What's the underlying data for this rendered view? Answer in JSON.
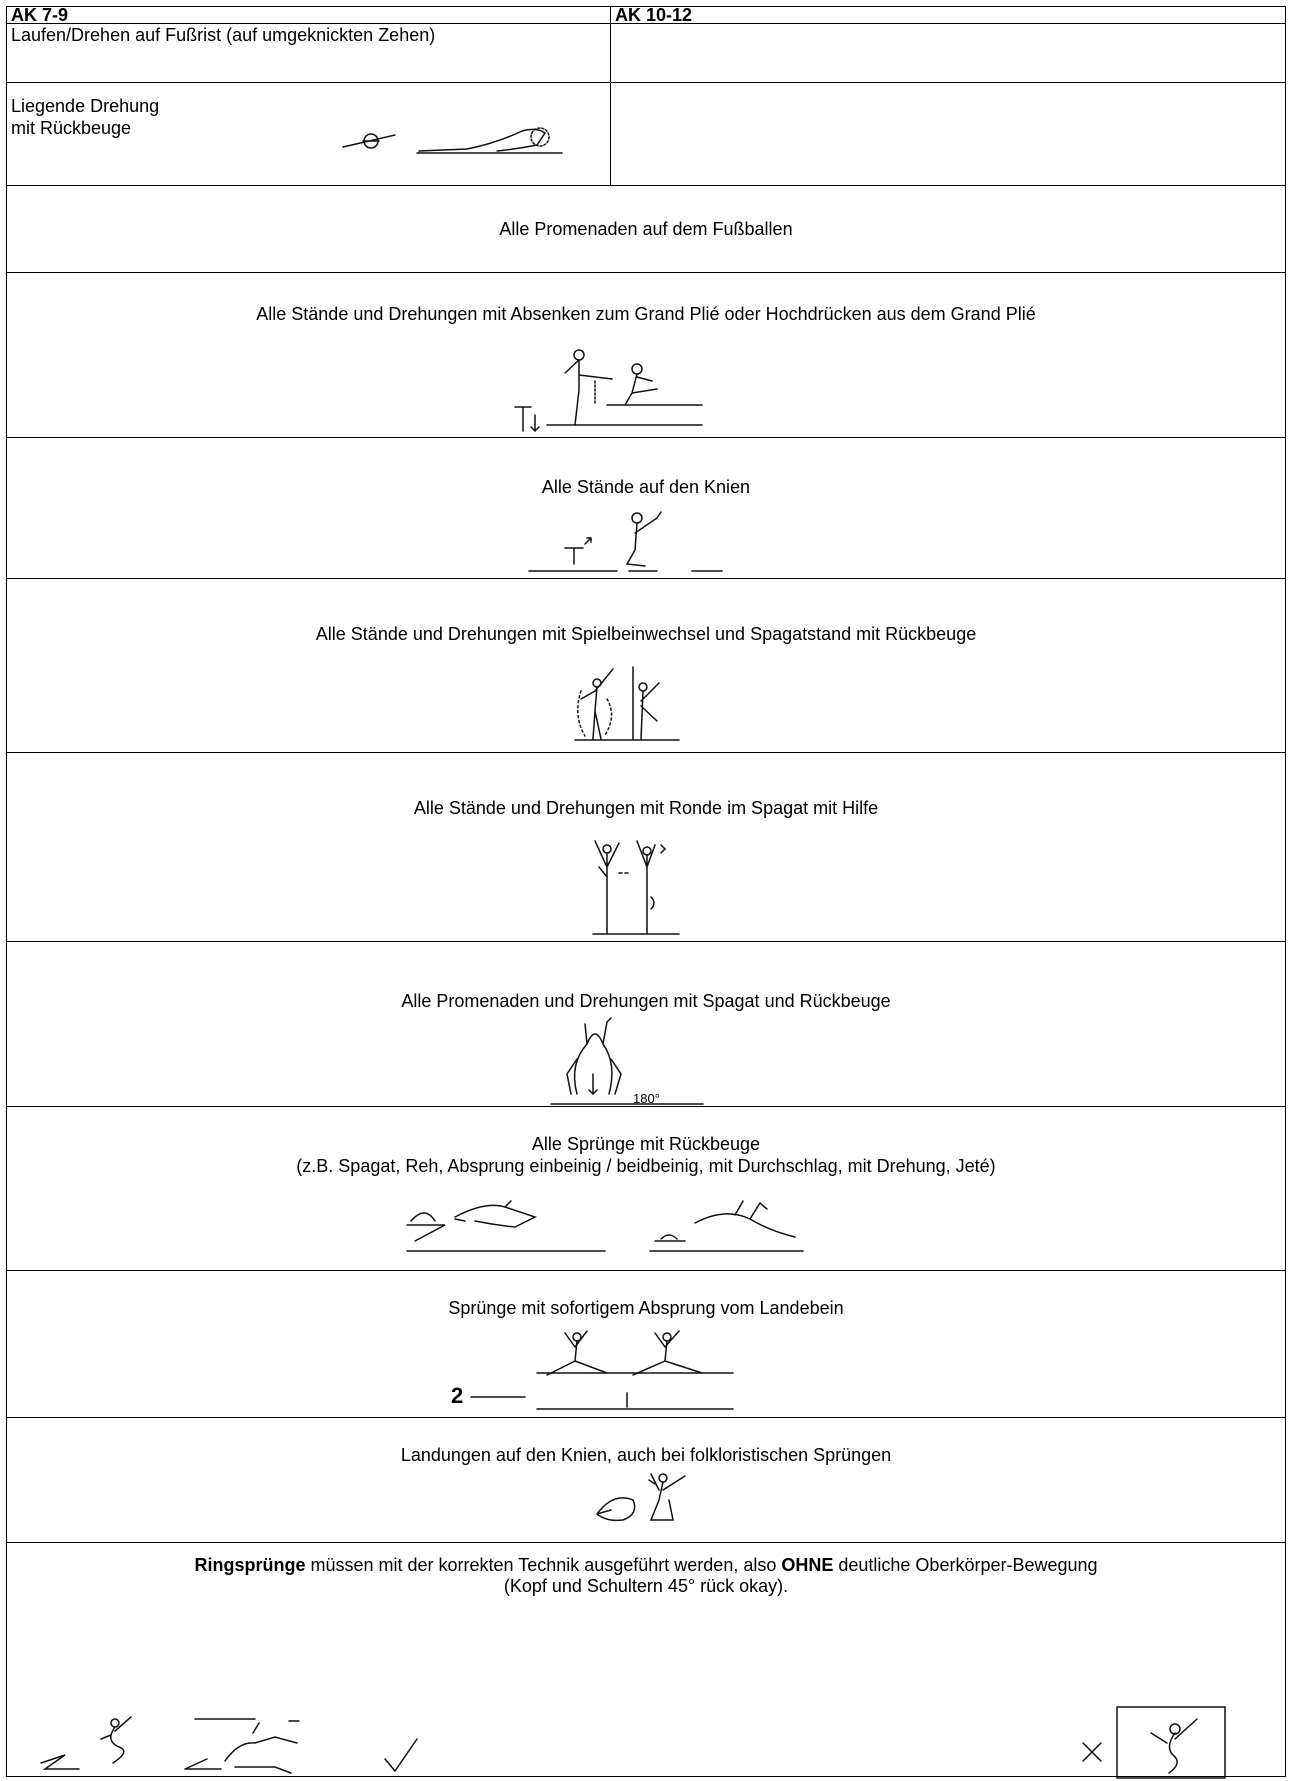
{
  "header": {
    "columns": [
      "AK 7-9",
      "AK 10-12"
    ]
  },
  "rows": [
    {
      "left": "Laufen/Drehen auf Fußrist (auf umgeknickten Zehen)"
    },
    {
      "left_lines": [
        "Liegende Drehung",
        "mit Rückbeuge"
      ]
    },
    {
      "text": "Alle Promenaden auf dem Fußballen"
    },
    {
      "text": "Alle Stände und Drehungen mit Absenken zum Grand Plié oder Hochdrücken aus dem Grand Plié"
    },
    {
      "text": "Alle Stände auf den Knien"
    },
    {
      "text": "Alle Stände und Drehungen mit Spielbeinwechsel und Spagatstand mit Rückbeuge"
    },
    {
      "text": "Alle Stände und Drehungen mit Ronde im Spagat mit Hilfe"
    },
    {
      "text": "Alle Promenaden und Drehungen mit Spagat und Rückbeuge",
      "figure_label": "180°"
    },
    {
      "lines": [
        "Alle Sprünge mit Rückbeuge",
        "(z.B. Spagat, Reh, Absprung einbeinig / beidbeinig, mit Durchschlag, mit Drehung, Jeté)"
      ]
    },
    {
      "text": "Sprünge mit sofortigem Absprung vom Landebein",
      "figure_label": "2"
    },
    {
      "text": "Landungen auf den Knien, auch bei folkloristischen Sprüngen"
    },
    {
      "segments": [
        {
          "text": "Ringsprünge",
          "bold": true
        },
        {
          "text": " müssen mit der korrekten Technik ausgeführt werden, also ",
          "bold": false
        },
        {
          "text": "OHNE",
          "bold": true
        },
        {
          "text": " deutliche Oberkörper-Bewegung",
          "bold": false
        }
      ],
      "note": "(Kopf und Schultern 45° rück okay)."
    }
  ]
}
